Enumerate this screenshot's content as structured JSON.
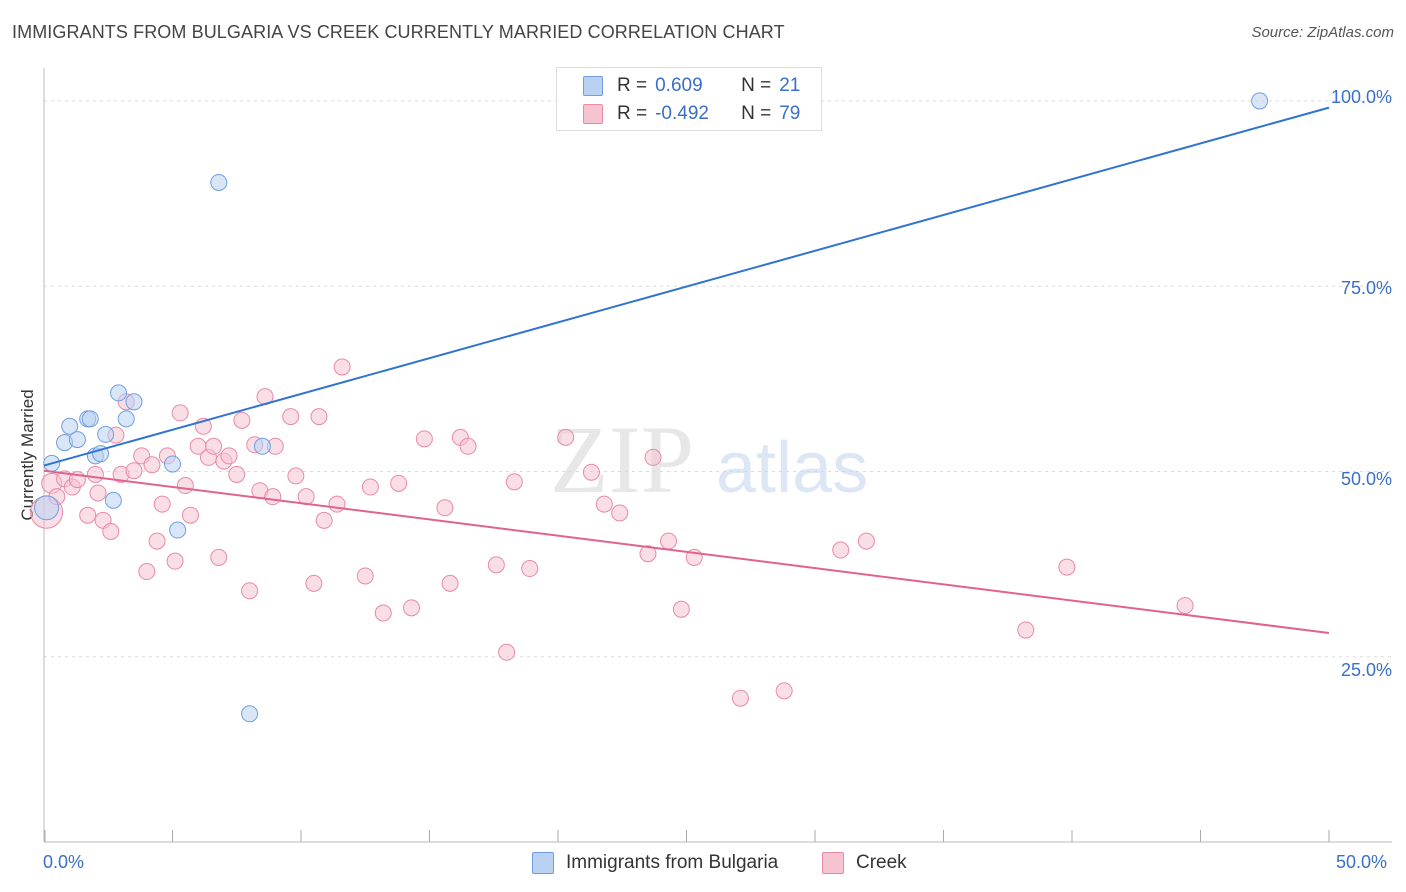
{
  "title": "IMMIGRANTS FROM BULGARIA VS CREEK CURRENTLY MARRIED CORRELATION CHART",
  "source": "Source: ZipAtlas.com",
  "watermark": {
    "zip": "ZIP",
    "atlas": "atlas"
  },
  "colors": {
    "blue_fill": "#b9d1f2",
    "blue_stroke": "#6f9ee0",
    "blue_line": "#2f74d0",
    "pink_fill": "#f6c3d1",
    "pink_stroke": "#e88aa6",
    "pink_line": "#e0638e",
    "tick_text": "#3a6fc8",
    "grid": "#dcdcdc"
  },
  "legend": {
    "rows": [
      {
        "r_label": "R =",
        "r_value": "0.609",
        "n_label": "N =",
        "n_value": "21"
      },
      {
        "r_label": "R =",
        "r_value": "-0.492",
        "n_label": "N =",
        "n_value": "79"
      }
    ]
  },
  "bottom_legend": [
    "Immigrants from Bulgaria",
    "Creek"
  ],
  "chart_data": {
    "type": "scatter",
    "title": "IMMIGRANTS FROM BULGARIA VS CREEK CURRENTLY MARRIED CORRELATION CHART",
    "xlabel": "",
    "ylabel": "Currently Married",
    "xlim": [
      0,
      50
    ],
    "ylim": [
      0,
      103.5
    ],
    "x_tick_labels": [
      "0.0%",
      "50.0%"
    ],
    "y_ticks": [
      25,
      50,
      75,
      100
    ],
    "y_tick_labels": [
      "25.0%",
      "50.0%",
      "75.0%",
      "100.0%"
    ],
    "grid": true,
    "series": [
      {
        "name": "Immigrants from Bulgaria",
        "color": "blue",
        "trend": {
          "x": [
            0,
            50
          ],
          "y": [
            50.8,
            99.1
          ]
        },
        "points": [
          [
            0.1,
            45.1,
            12
          ],
          [
            0.3,
            51.1,
            8
          ],
          [
            0.8,
            53.9,
            8
          ],
          [
            1.0,
            56.1,
            8
          ],
          [
            1.3,
            54.3,
            8
          ],
          [
            1.7,
            57.1,
            8
          ],
          [
            1.8,
            57.1,
            8
          ],
          [
            2.0,
            52.1,
            8
          ],
          [
            2.2,
            52.4,
            8
          ],
          [
            2.4,
            55.0,
            8
          ],
          [
            2.7,
            46.1,
            8
          ],
          [
            2.9,
            60.6,
            8
          ],
          [
            3.2,
            57.1,
            8
          ],
          [
            3.5,
            59.4,
            8
          ],
          [
            5.0,
            51.0,
            8
          ],
          [
            5.2,
            42.1,
            8
          ],
          [
            6.8,
            89.0,
            8
          ],
          [
            8.0,
            17.3,
            8
          ],
          [
            8.5,
            53.4,
            8
          ],
          [
            47.3,
            100.0,
            8
          ]
        ]
      },
      {
        "name": "Creek",
        "color": "pink",
        "trend": {
          "x": [
            0,
            50
          ],
          "y": [
            50.1,
            28.2
          ]
        },
        "points": [
          [
            0.1,
            44.5,
            16
          ],
          [
            0.3,
            48.4,
            10
          ],
          [
            0.5,
            46.6,
            8
          ],
          [
            0.8,
            49.0,
            8
          ],
          [
            1.1,
            47.9,
            8
          ],
          [
            1.3,
            48.9,
            8
          ],
          [
            1.7,
            44.1,
            8
          ],
          [
            2.0,
            49.6,
            8
          ],
          [
            2.1,
            47.1,
            8
          ],
          [
            2.3,
            43.4,
            8
          ],
          [
            2.6,
            41.9,
            8
          ],
          [
            2.8,
            54.9,
            8
          ],
          [
            3.0,
            49.6,
            8
          ],
          [
            3.2,
            59.4,
            8
          ],
          [
            3.5,
            50.1,
            8
          ],
          [
            3.8,
            52.1,
            8
          ],
          [
            4.0,
            36.5,
            8
          ],
          [
            4.2,
            50.9,
            8
          ],
          [
            4.4,
            40.6,
            8
          ],
          [
            4.6,
            45.6,
            8
          ],
          [
            4.8,
            52.1,
            8
          ],
          [
            5.1,
            37.9,
            8
          ],
          [
            5.3,
            57.9,
            8
          ],
          [
            5.5,
            48.1,
            8
          ],
          [
            5.7,
            44.1,
            8
          ],
          [
            6.0,
            53.4,
            8
          ],
          [
            6.2,
            56.1,
            8
          ],
          [
            6.4,
            51.9,
            8
          ],
          [
            6.6,
            53.4,
            8
          ],
          [
            6.8,
            38.4,
            8
          ],
          [
            7.0,
            51.4,
            8
          ],
          [
            7.2,
            52.1,
            8
          ],
          [
            7.5,
            49.6,
            8
          ],
          [
            7.7,
            56.9,
            8
          ],
          [
            8.0,
            33.9,
            8
          ],
          [
            8.2,
            53.6,
            8
          ],
          [
            8.4,
            47.4,
            8
          ],
          [
            8.6,
            60.1,
            8
          ],
          [
            8.9,
            46.6,
            8
          ],
          [
            9.0,
            53.4,
            8
          ],
          [
            9.6,
            57.4,
            8
          ],
          [
            9.8,
            49.4,
            8
          ],
          [
            10.2,
            46.6,
            8
          ],
          [
            10.5,
            34.9,
            8
          ],
          [
            10.7,
            57.4,
            8
          ],
          [
            10.9,
            43.4,
            8
          ],
          [
            11.4,
            45.6,
            8
          ],
          [
            11.6,
            64.1,
            8
          ],
          [
            12.5,
            35.9,
            8
          ],
          [
            12.7,
            47.9,
            8
          ],
          [
            13.2,
            30.9,
            8
          ],
          [
            13.8,
            48.4,
            8
          ],
          [
            14.3,
            31.6,
            8
          ],
          [
            14.8,
            54.4,
            8
          ],
          [
            15.6,
            45.1,
            8
          ],
          [
            15.8,
            34.9,
            8
          ],
          [
            16.2,
            54.6,
            8
          ],
          [
            16.5,
            53.4,
            8
          ],
          [
            17.6,
            37.4,
            8
          ],
          [
            18.0,
            25.6,
            8
          ],
          [
            18.3,
            48.6,
            8
          ],
          [
            18.9,
            36.9,
            8
          ],
          [
            20.3,
            54.6,
            8
          ],
          [
            21.3,
            49.9,
            8
          ],
          [
            21.8,
            45.6,
            8
          ],
          [
            22.4,
            44.4,
            8
          ],
          [
            23.5,
            38.9,
            8
          ],
          [
            23.7,
            51.9,
            8
          ],
          [
            24.3,
            40.6,
            8
          ],
          [
            24.8,
            31.4,
            8
          ],
          [
            25.3,
            38.4,
            8
          ],
          [
            27.1,
            19.4,
            8
          ],
          [
            28.8,
            20.4,
            8
          ],
          [
            31.0,
            39.4,
            8
          ],
          [
            32.0,
            40.6,
            8
          ],
          [
            38.2,
            28.6,
            8
          ],
          [
            39.8,
            37.1,
            8
          ],
          [
            44.4,
            31.9,
            8
          ]
        ]
      }
    ]
  }
}
